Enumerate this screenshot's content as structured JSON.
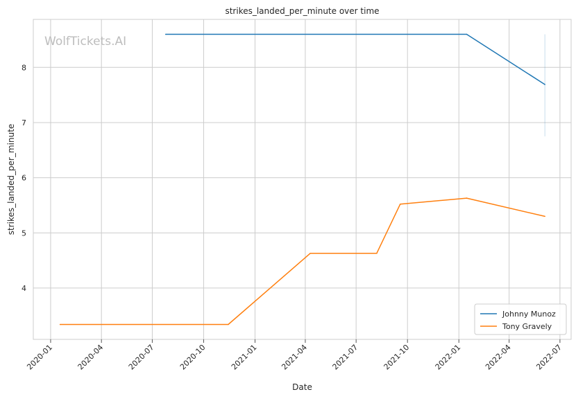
{
  "chart_data": {
    "type": "line",
    "title": "strikes_landed_per_minute over time",
    "xlabel": "Date",
    "ylabel": "strikes_landed_per_minute",
    "watermark": "WolfTickets.AI",
    "x_ticks": [
      "2020-01",
      "2020-04",
      "2020-07",
      "2020-10",
      "2021-01",
      "2021-04",
      "2021-07",
      "2021-10",
      "2022-01",
      "2022-04",
      "2022-07"
    ],
    "y_ticks": [
      4,
      5,
      6,
      7,
      8
    ],
    "xlim": [
      "2019-12-01",
      "2022-07-21"
    ],
    "ylim": [
      3.07,
      8.87
    ],
    "grid": true,
    "legend_position": "lower-right",
    "series": [
      {
        "name": "Johnny Munoz",
        "color": "#1f77b4",
        "x": [
          "2020-07-25",
          "2022-01-15",
          "2022-06-04"
        ],
        "y": [
          8.6,
          8.6,
          7.69
        ],
        "band": {
          "x": "2022-06-04",
          "low": 6.75,
          "high": 8.6
        }
      },
      {
        "name": "Tony Gravely",
        "color": "#ff7f0e",
        "x": [
          "2020-01-18",
          "2020-11-14",
          "2021-04-10",
          "2021-08-07",
          "2021-09-18",
          "2022-01-15",
          "2022-06-04"
        ],
        "y": [
          3.34,
          3.34,
          4.63,
          4.63,
          5.52,
          5.63,
          5.3
        ]
      }
    ]
  }
}
